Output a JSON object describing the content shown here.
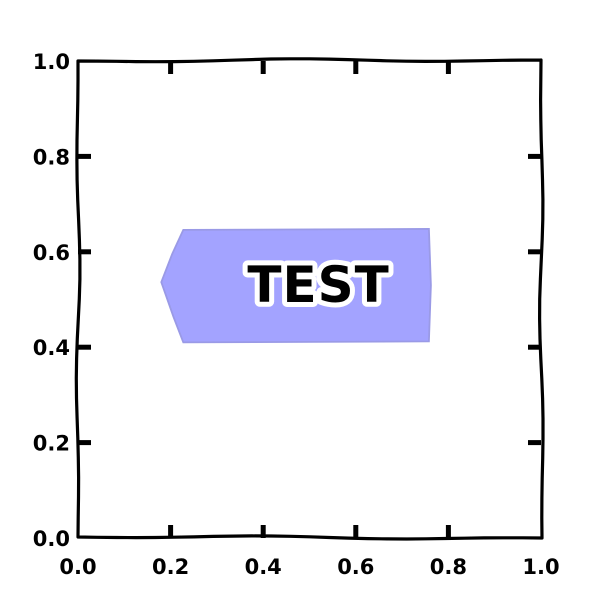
{
  "chart_data": {
    "type": "scatter",
    "title": "",
    "xlabel": "",
    "ylabel": "",
    "xlim": [
      0,
      1
    ],
    "ylim": [
      0,
      1
    ],
    "grid": false,
    "x_ticks": [
      {
        "value": 0.0,
        "label": "0.0"
      },
      {
        "value": 0.2,
        "label": "0.2"
      },
      {
        "value": 0.4,
        "label": "0.4"
      },
      {
        "value": 0.6,
        "label": "0.6"
      },
      {
        "value": 0.8,
        "label": "0.8"
      },
      {
        "value": 1.0,
        "label": "1.0"
      }
    ],
    "y_ticks": [
      {
        "value": 0.0,
        "label": "0.0"
      },
      {
        "value": 0.2,
        "label": "0.2"
      },
      {
        "value": 0.4,
        "label": "0.4"
      },
      {
        "value": 0.6,
        "label": "0.6"
      },
      {
        "value": 0.8,
        "label": "0.8"
      },
      {
        "value": 1.0,
        "label": "1.0"
      }
    ],
    "annotations": [
      {
        "text": "TEST",
        "x_range": [
          0.18,
          0.76
        ],
        "y_range": [
          0.41,
          0.65
        ],
        "arrow_direction": "left",
        "box_fill": "#a3a3ff",
        "box_edge": "#9a9ae6",
        "text_color": "#000000",
        "text_outline": "#ffffff"
      }
    ],
    "style": "xkcd"
  }
}
